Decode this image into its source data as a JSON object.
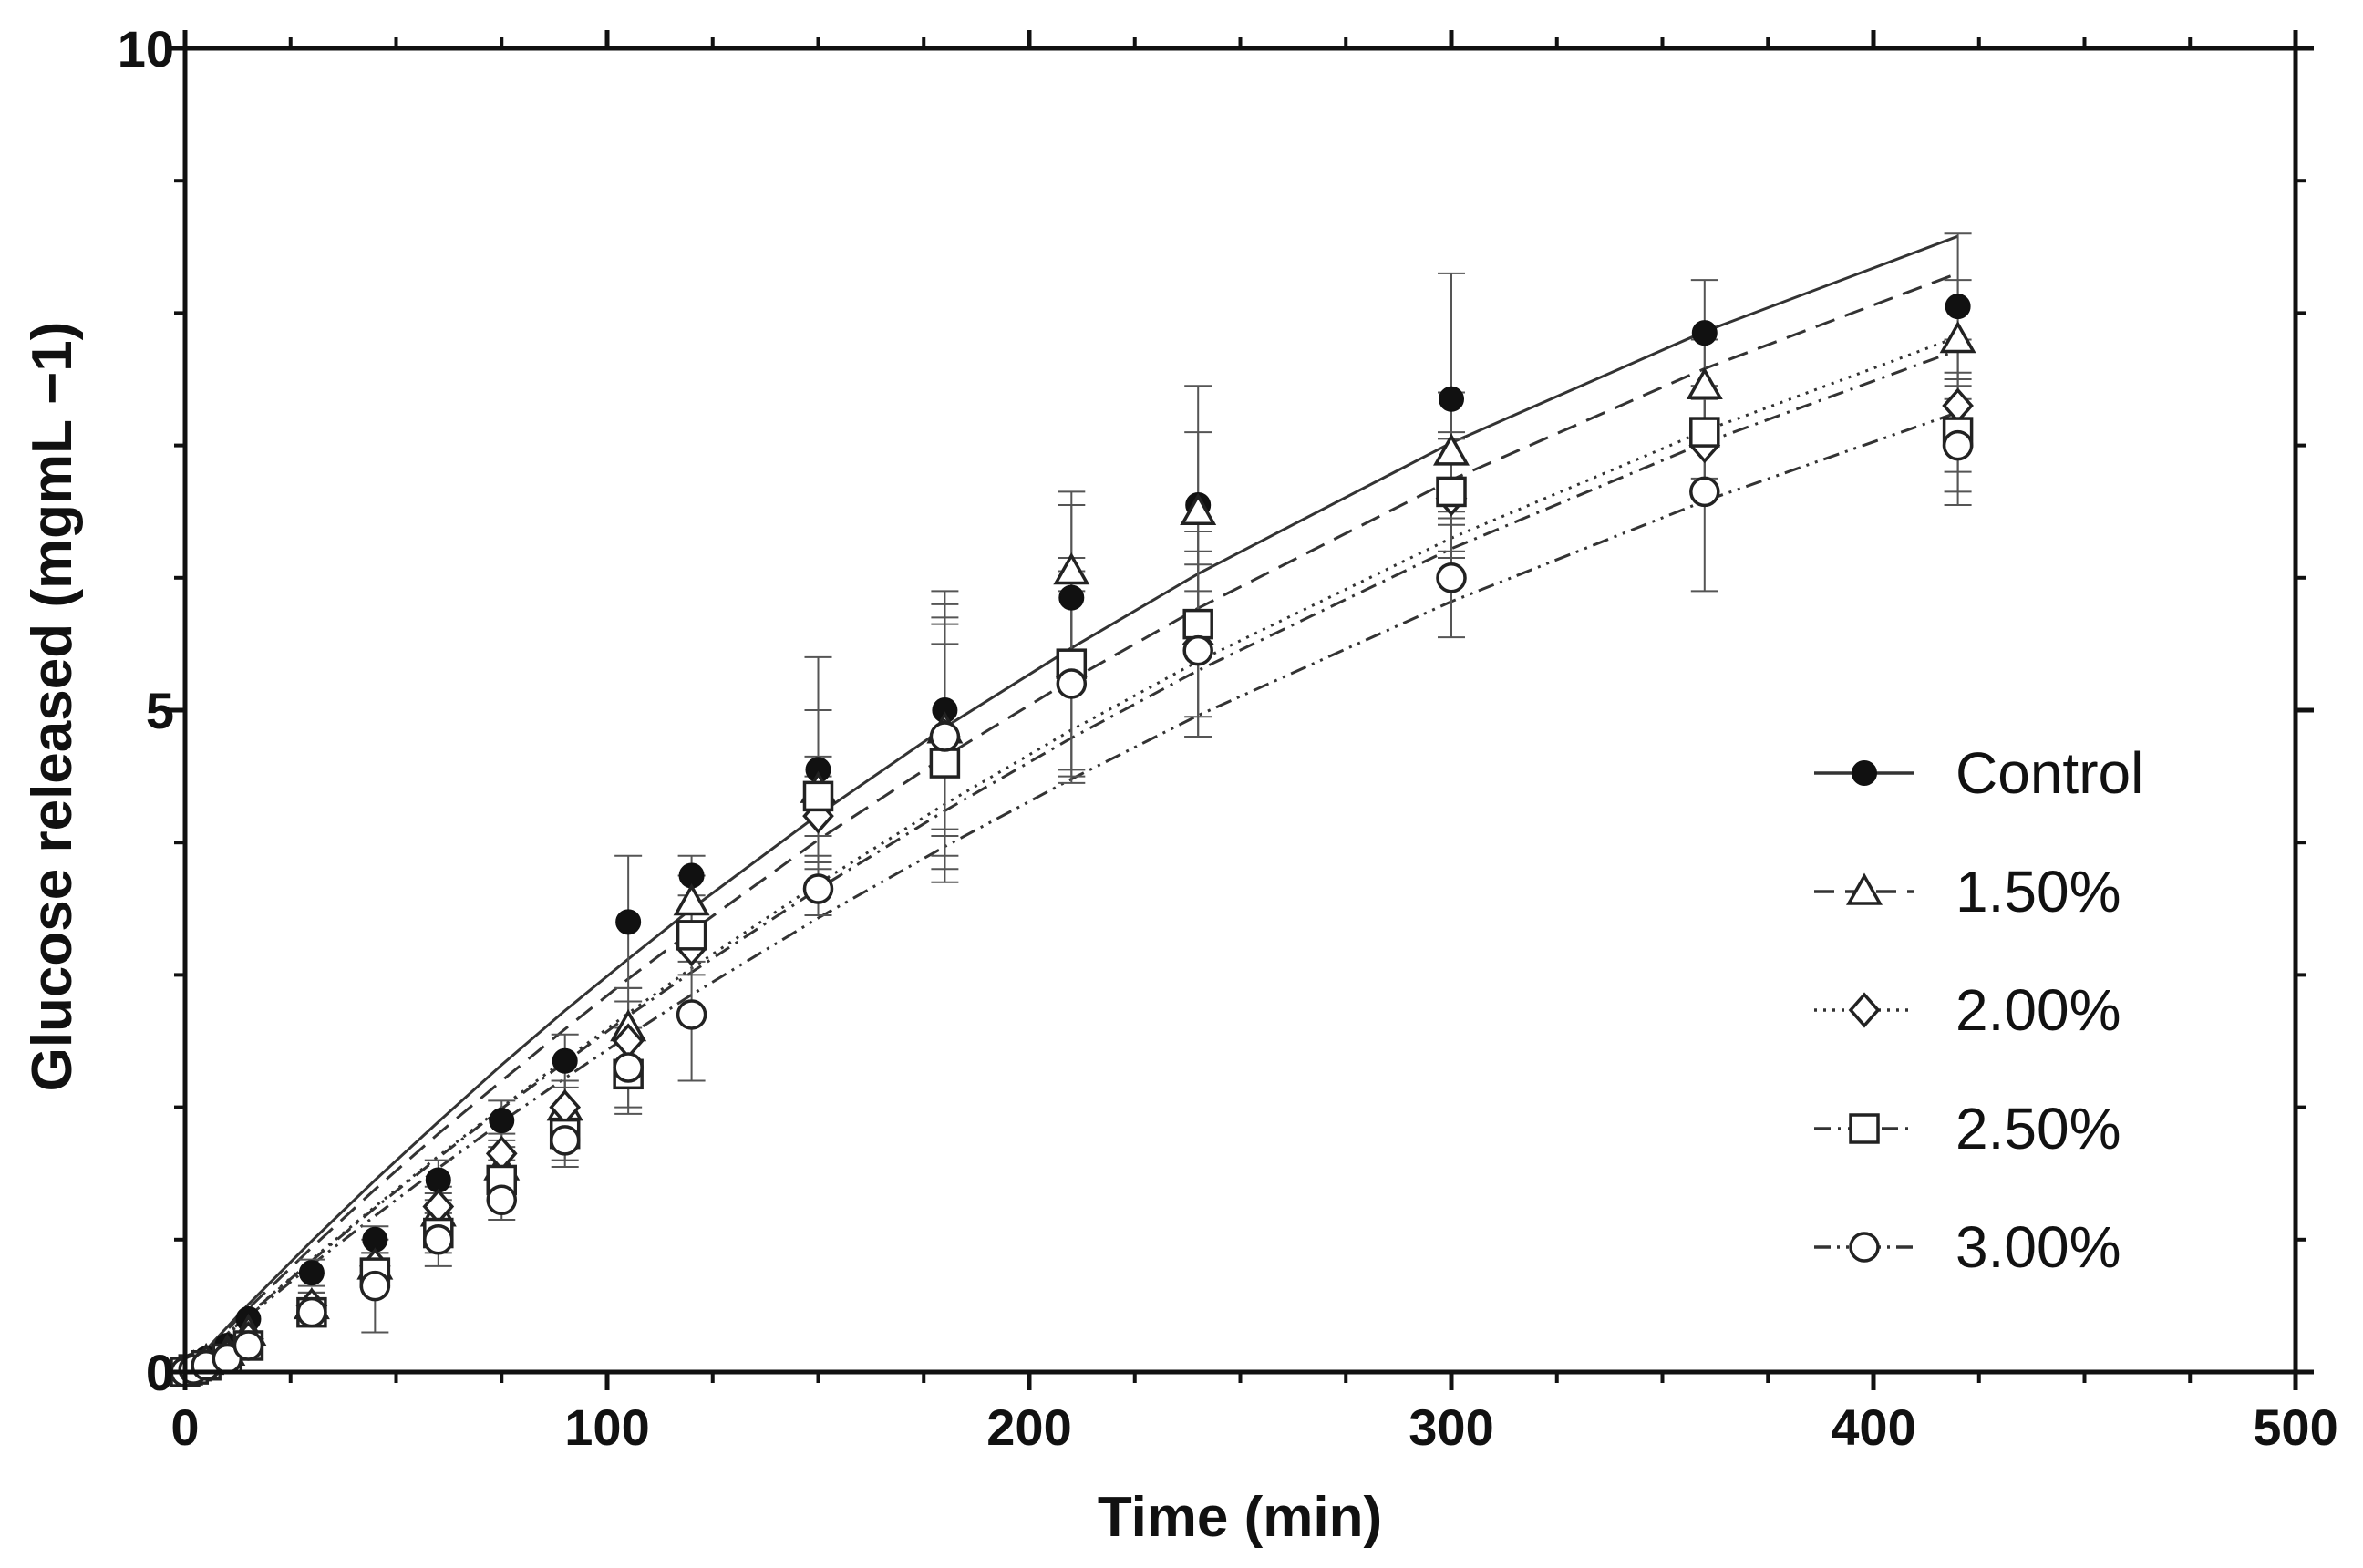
{
  "chart_data": {
    "type": "scatter",
    "xlabel": "Time (min)",
    "ylabel": "Glucose released (mgmL −1)",
    "xlim": [
      0,
      500
    ],
    "ylim": [
      0,
      10
    ],
    "x_ticks": [
      0,
      100,
      200,
      300,
      400,
      500
    ],
    "y_ticks": [
      0,
      5,
      10
    ],
    "x_tick_labels": [
      "0",
      "100",
      "200",
      "300",
      "400",
      "500"
    ],
    "y_tick_labels": [
      "0",
      "5",
      "10"
    ],
    "grid": false,
    "legend_position": "bottom-right",
    "x": [
      0,
      2,
      5,
      10,
      15,
      30,
      45,
      60,
      75,
      90,
      105,
      120,
      150,
      180,
      210,
      240,
      300,
      360,
      420
    ],
    "series": [
      {
        "name": "Control",
        "marker": "filled-circle",
        "line_style": "solid",
        "values": [
          0,
          0.05,
          0.1,
          0.2,
          0.4,
          0.75,
          1.0,
          1.45,
          1.9,
          2.35,
          3.4,
          3.75,
          4.55,
          5.0,
          5.85,
          6.55,
          7.35,
          7.85,
          8.05
        ],
        "errors": [
          0,
          0,
          0,
          0,
          0,
          0.1,
          0.1,
          0.15,
          0.15,
          0.2,
          0.5,
          0.15,
          0.85,
          0.9,
          0.7,
          0.9,
          0.95,
          0.4,
          0.55
        ],
        "fit": [
          0,
          0.07,
          0.17,
          0.34,
          0.51,
          0.99,
          1.45,
          1.89,
          2.32,
          2.73,
          3.12,
          3.5,
          4.21,
          4.87,
          5.47,
          6.03,
          7.02,
          7.86,
          8.58
        ]
      },
      {
        "name": "1.50%",
        "marker": "open-triangle",
        "line_style": "dashed",
        "values": [
          0,
          0.03,
          0.08,
          0.15,
          0.3,
          0.5,
          0.8,
          1.2,
          1.55,
          2.0,
          2.6,
          3.55,
          4.4,
          4.85,
          6.05,
          6.5,
          6.95,
          7.45,
          7.8
        ],
        "errors": [
          0,
          0,
          0,
          0,
          0,
          0.1,
          0.1,
          0.15,
          0.15,
          0.2,
          0.3,
          0.2,
          0.6,
          0.8,
          0.6,
          0.6,
          0.45,
          0.35,
          0.45
        ],
        "fit": [
          0,
          0.07,
          0.16,
          0.32,
          0.48,
          0.94,
          1.38,
          1.8,
          2.2,
          2.59,
          2.97,
          3.33,
          4.02,
          4.65,
          5.23,
          5.77,
          6.74,
          7.58,
          8.3
        ]
      },
      {
        "name": "2.00%",
        "marker": "open-diamond",
        "line_style": "dotted",
        "values": [
          0,
          0.03,
          0.07,
          0.12,
          0.25,
          0.5,
          0.8,
          1.25,
          1.65,
          2.0,
          2.5,
          3.2,
          4.2,
          4.8,
          5.25,
          5.5,
          6.6,
          7.0,
          7.3
        ],
        "errors": [
          0,
          0,
          0,
          0,
          0,
          0.1,
          0.1,
          0.15,
          0.15,
          0.2,
          0.3,
          0.2,
          0.3,
          1.0,
          0.8,
          0.7,
          0.45,
          0.35,
          0.5
        ],
        "fit": [
          0,
          0.06,
          0.15,
          0.29,
          0.43,
          0.85,
          1.25,
          1.63,
          2.0,
          2.36,
          2.71,
          3.05,
          3.69,
          4.29,
          4.85,
          5.37,
          6.3,
          7.11,
          7.82
        ]
      },
      {
        "name": "2.50%",
        "marker": "open-square",
        "line_style": "dash-dot",
        "values": [
          0,
          0.02,
          0.05,
          0.1,
          0.2,
          0.45,
          0.75,
          1.05,
          1.45,
          1.8,
          2.25,
          3.3,
          4.35,
          4.6,
          5.35,
          5.65,
          6.65,
          7.1,
          7.1
        ],
        "errors": [
          0,
          0,
          0,
          0,
          0,
          0.1,
          0.1,
          0.15,
          0.15,
          0.2,
          0.3,
          0.2,
          0.3,
          0.9,
          0.8,
          0.7,
          0.45,
          0.35,
          0.45
        ],
        "fit": [
          0,
          0.06,
          0.15,
          0.29,
          0.43,
          0.84,
          1.24,
          1.62,
          1.99,
          2.34,
          2.69,
          3.02,
          3.65,
          4.24,
          4.79,
          5.3,
          6.22,
          7.02,
          7.72
        ]
      },
      {
        "name": "3.00%",
        "marker": "open-circle",
        "line_style": "dash-dot-dot",
        "values": [
          0,
          0.02,
          0.05,
          0.1,
          0.2,
          0.45,
          0.65,
          1.0,
          1.3,
          1.75,
          2.3,
          2.7,
          3.65,
          4.8,
          5.2,
          5.45,
          6.0,
          6.65,
          7.0
        ],
        "errors": [
          0,
          0,
          0,
          0,
          0,
          0.1,
          0.35,
          0.2,
          0.15,
          0.2,
          0.3,
          0.5,
          0.2,
          0.9,
          0.7,
          0.65,
          0.45,
          0.75,
          0.45
        ],
        "fit": [
          0,
          0.06,
          0.14,
          0.28,
          0.42,
          0.81,
          1.18,
          1.54,
          1.89,
          2.22,
          2.54,
          2.85,
          3.43,
          3.97,
          4.48,
          4.96,
          5.82,
          6.58,
          7.25
        ]
      }
    ]
  }
}
